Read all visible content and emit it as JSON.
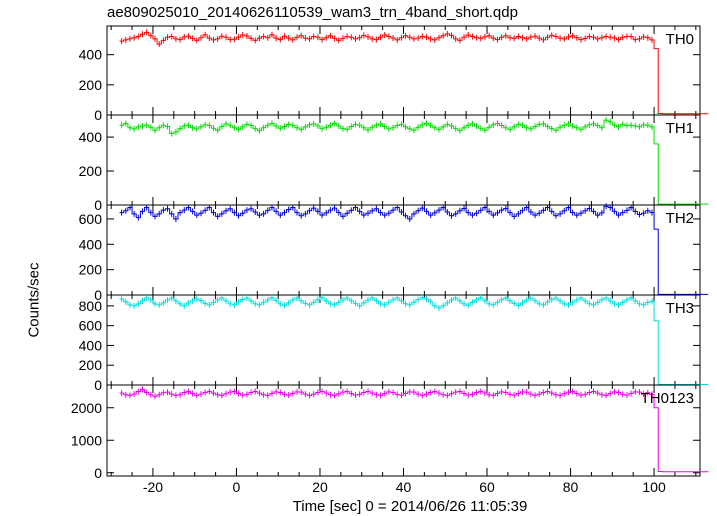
{
  "chart_data": {
    "type": "line",
    "title": "ae809025010_20140626110539_wam3_trn_4band_short.qdp",
    "xlabel": "Time [sec] 0 = 2014/06/26 11:05:39",
    "ylabel": "Counts/sec",
    "xlim": [
      -31,
      111
    ],
    "x_ticks": [
      -20,
      0,
      20,
      40,
      60,
      80,
      100
    ],
    "drop_time": 97.5,
    "bin_width": 1,
    "panels": [
      {
        "name": "TH0",
        "color": "#ff0000",
        "ylim": [
          0,
          590
        ],
        "y_ticks": [
          0,
          200,
          400
        ],
        "values": [
          490,
          498,
          505,
          512,
          520,
          535,
          548,
          526,
          505,
          470,
          495,
          515,
          520,
          505,
          500,
          518,
          522,
          508,
          495,
          512,
          532,
          510,
          498,
          505,
          522,
          515,
          500,
          502,
          516,
          530,
          524,
          508,
          495,
          510,
          520,
          512,
          532,
          510,
          500,
          522,
          510,
          498,
          515,
          526,
          510,
          505,
          520,
          515,
          500,
          512,
          525,
          508,
          495,
          508,
          520,
          515,
          505,
          512,
          528,
          518,
          505,
          500,
          515,
          530,
          520,
          510,
          498,
          512,
          525,
          515,
          505,
          510,
          520,
          515,
          505,
          498,
          512,
          525,
          538,
          528,
          505,
          495,
          515,
          530,
          520,
          512,
          508,
          518,
          525,
          510,
          500,
          515,
          525,
          512,
          508,
          520,
          512,
          505,
          516,
          522,
          510,
          498,
          515,
          528,
          520,
          510,
          505,
          518,
          525,
          512,
          500,
          508,
          520,
          515,
          505,
          512,
          520,
          515,
          510,
          500,
          515,
          520,
          520,
          500,
          505,
          518,
          512,
          498
        ],
        "drop": [
          440,
          10,
          8,
          8,
          8,
          8,
          8,
          8,
          8,
          8,
          8,
          8,
          8
        ]
      },
      {
        "name": "TH1",
        "color": "#00dd00",
        "ylim": [
          0,
          530
        ],
        "y_ticks": [
          0,
          200,
          400
        ],
        "values": [
          470,
          480,
          455,
          448,
          460,
          465,
          470,
          458,
          440,
          455,
          470,
          462,
          420,
          430,
          450,
          465,
          470,
          455,
          448,
          460,
          472,
          468,
          452,
          440,
          462,
          478,
          470,
          455,
          445,
          460,
          475,
          468,
          450,
          438,
          455,
          470,
          480,
          465,
          452,
          462,
          475,
          470,
          455,
          445,
          460,
          472,
          478,
          465,
          450,
          458,
          470,
          480,
          465,
          450,
          445,
          462,
          475,
          470,
          455,
          442,
          458,
          470,
          478,
          462,
          448,
          455,
          468,
          475,
          460,
          448,
          440,
          458,
          472,
          480,
          470,
          455,
          445,
          460,
          475,
          465,
          450,
          438,
          455,
          470,
          478,
          465,
          452,
          440,
          458,
          472,
          480,
          468,
          455,
          445,
          460,
          475,
          470,
          455,
          448,
          462,
          475,
          478,
          462,
          450,
          440,
          458,
          470,
          478,
          465,
          455,
          445,
          460,
          472,
          478,
          468,
          455,
          500,
          490,
          470,
          460,
          475,
          468,
          470,
          465,
          460,
          472,
          470,
          460
        ],
        "drop": [
          360,
          5,
          5,
          5,
          5,
          5,
          5,
          5,
          5,
          5,
          5,
          5,
          5
        ]
      },
      {
        "name": "TH2",
        "color": "#0000dd",
        "ylim": [
          0,
          710
        ],
        "y_ticks": [
          0,
          200,
          400,
          600
        ],
        "values": [
          650,
          665,
          690,
          640,
          610,
          660,
          690,
          650,
          620,
          640,
          670,
          680,
          640,
          600,
          650,
          670,
          690,
          660,
          630,
          645,
          668,
          690,
          650,
          620,
          640,
          665,
          680,
          650,
          625,
          645,
          670,
          680,
          655,
          630,
          640,
          668,
          690,
          660,
          630,
          650,
          675,
          690,
          650,
          625,
          640,
          665,
          685,
          660,
          630,
          648,
          670,
          685,
          650,
          620,
          645,
          668,
          690,
          660,
          630,
          645,
          665,
          680,
          650,
          630,
          645,
          670,
          690,
          655,
          625,
          600,
          640,
          665,
          685,
          660,
          630,
          648,
          670,
          690,
          655,
          625,
          640,
          665,
          682,
          650,
          630,
          645,
          668,
          690,
          660,
          630,
          648,
          670,
          682,
          650,
          620,
          640,
          668,
          690,
          655,
          630,
          645,
          668,
          690,
          660,
          625,
          640,
          665,
          690,
          650,
          630,
          645,
          665,
          682,
          660,
          630,
          648,
          700,
          690,
          660,
          630,
          650,
          668,
          690,
          660,
          635,
          645,
          665,
          650
        ],
        "drop": [
          520,
          5,
          5,
          5,
          5,
          5,
          5,
          5,
          5,
          5,
          5,
          5,
          5
        ]
      },
      {
        "name": "TH3",
        "color": "#00dddd",
        "ylim": [
          0,
          910
        ],
        "y_ticks": [
          0,
          200,
          400,
          600,
          800
        ],
        "values": [
          870,
          840,
          810,
          800,
          820,
          850,
          880,
          860,
          820,
          810,
          830,
          860,
          880,
          850,
          820,
          800,
          830,
          850,
          870,
          855,
          825,
          810,
          835,
          860,
          880,
          850,
          820,
          810,
          840,
          865,
          880,
          850,
          820,
          810,
          835,
          860,
          882,
          855,
          820,
          805,
          830,
          860,
          880,
          850,
          825,
          810,
          835,
          862,
          882,
          850,
          820,
          810,
          835,
          860,
          880,
          850,
          825,
          800,
          830,
          860,
          880,
          852,
          820,
          810,
          835,
          862,
          880,
          850,
          822,
          810,
          838,
          865,
          885,
          870,
          840,
          800,
          780,
          800,
          830,
          860,
          880,
          850,
          820,
          805,
          835,
          860,
          882,
          852,
          820,
          810,
          835,
          862,
          880,
          850,
          825,
          805,
          830,
          860,
          880,
          852,
          822,
          810,
          838,
          862,
          880,
          850,
          820,
          810,
          835,
          860,
          880,
          850,
          822,
          810,
          835,
          862,
          880,
          850,
          820,
          810,
          835,
          860,
          880,
          850,
          820,
          810,
          835,
          845
        ],
        "drop": [
          650,
          5,
          5,
          5,
          5,
          5,
          5,
          5,
          5,
          5,
          5,
          5,
          5
        ]
      },
      {
        "name": "TH0123",
        "color": "#ee00ee",
        "ylim": [
          -100,
          2700
        ],
        "y_ticks": [
          0,
          1000,
          2000
        ],
        "values": [
          2450,
          2400,
          2380,
          2420,
          2500,
          2560,
          2470,
          2400,
          2350,
          2400,
          2460,
          2480,
          2420,
          2380,
          2400,
          2470,
          2500,
          2440,
          2380,
          2420,
          2470,
          2500,
          2450,
          2400,
          2380,
          2430,
          2480,
          2500,
          2440,
          2390,
          2410,
          2470,
          2500,
          2450,
          2400,
          2380,
          2440,
          2490,
          2470,
          2410,
          2390,
          2440,
          2490,
          2480,
          2420,
          2380,
          2420,
          2470,
          2500,
          2450,
          2400,
          2380,
          2430,
          2480,
          2500,
          2440,
          2390,
          2410,
          2470,
          2500,
          2450,
          2400,
          2380,
          2440,
          2490,
          2470,
          2410,
          2390,
          2440,
          2490,
          2480,
          2420,
          2380,
          2420,
          2470,
          2500,
          2450,
          2400,
          2380,
          2430,
          2480,
          2500,
          2440,
          2390,
          2410,
          2470,
          2500,
          2450,
          2400,
          2380,
          2440,
          2490,
          2470,
          2410,
          2390,
          2440,
          2490,
          2480,
          2420,
          2380,
          2420,
          2470,
          2500,
          2450,
          2400,
          2380,
          2430,
          2480,
          2500,
          2440,
          2390,
          2410,
          2470,
          2500,
          2450,
          2400,
          2380,
          2440,
          2490,
          2470,
          2410,
          2390,
          2440,
          2490,
          2480,
          2420,
          2460,
          2410
        ],
        "drop": [
          2000,
          40,
          30,
          30,
          30,
          30,
          30,
          30,
          30,
          30,
          30,
          30,
          30
        ]
      }
    ]
  }
}
